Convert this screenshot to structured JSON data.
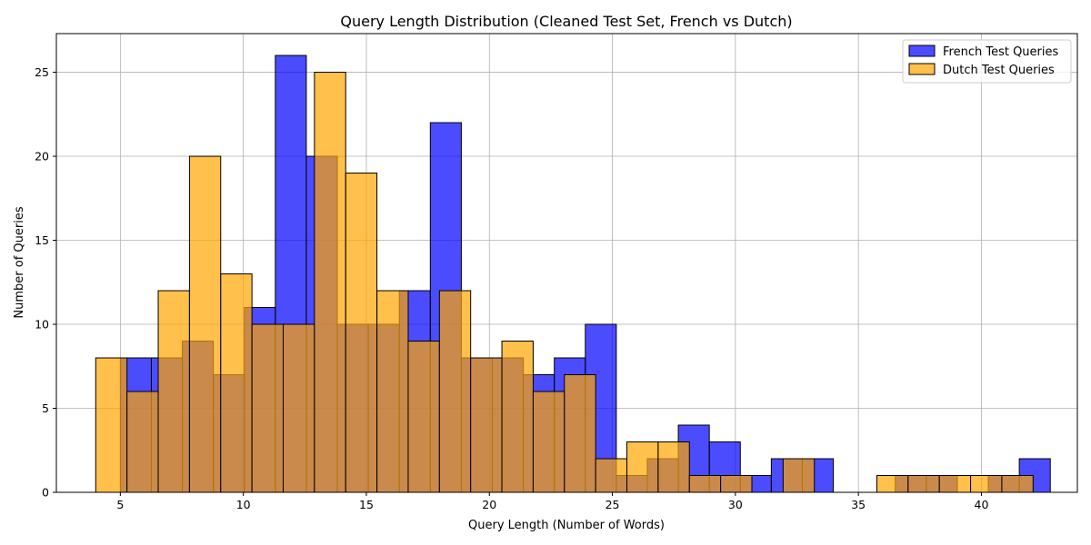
{
  "chart_data": {
    "type": "histogram",
    "title": "Query Length Distribution (Cleaned Test Set, French vs Dutch)",
    "xlabel": "Query Length (Number of Words)",
    "ylabel": "Number of Queries",
    "xlim": [
      2.4,
      43.9
    ],
    "ylim": [
      0,
      27.3
    ],
    "xticks": [
      5,
      10,
      15,
      20,
      25,
      30,
      35,
      40
    ],
    "yticks": [
      0,
      5,
      10,
      15,
      20,
      25
    ],
    "grid": true,
    "legend_position": "top-right",
    "series": [
      {
        "name": "French Test Queries",
        "color": "#0000ff",
        "bins": [
          {
            "x0": 5.0,
            "x1": 6.26,
            "value": 8
          },
          {
            "x0": 6.26,
            "x1": 7.52,
            "value": 8
          },
          {
            "x0": 7.52,
            "x1": 8.78,
            "value": 9
          },
          {
            "x0": 8.78,
            "x1": 10.04,
            "value": 7
          },
          {
            "x0": 10.04,
            "x1": 11.3,
            "value": 11
          },
          {
            "x0": 11.3,
            "x1": 12.56,
            "value": 26
          },
          {
            "x0": 12.56,
            "x1": 13.82,
            "value": 20
          },
          {
            "x0": 13.82,
            "x1": 15.08,
            "value": 10
          },
          {
            "x0": 15.08,
            "x1": 16.34,
            "value": 10
          },
          {
            "x0": 16.34,
            "x1": 17.6,
            "value": 12
          },
          {
            "x0": 17.6,
            "x1": 18.86,
            "value": 22
          },
          {
            "x0": 18.86,
            "x1": 20.12,
            "value": 8
          },
          {
            "x0": 20.12,
            "x1": 21.38,
            "value": 8
          },
          {
            "x0": 21.38,
            "x1": 22.64,
            "value": 7
          },
          {
            "x0": 22.64,
            "x1": 23.9,
            "value": 8
          },
          {
            "x0": 23.9,
            "x1": 25.16,
            "value": 10
          },
          {
            "x0": 25.16,
            "x1": 26.42,
            "value": 1
          },
          {
            "x0": 26.42,
            "x1": 27.68,
            "value": 2
          },
          {
            "x0": 27.68,
            "x1": 28.94,
            "value": 4
          },
          {
            "x0": 28.94,
            "x1": 30.2,
            "value": 3
          },
          {
            "x0": 30.2,
            "x1": 31.46,
            "value": 1
          },
          {
            "x0": 31.46,
            "x1": 32.72,
            "value": 2
          },
          {
            "x0": 32.72,
            "x1": 33.98,
            "value": 2
          },
          {
            "x0": 33.98,
            "x1": 35.24,
            "value": 0
          },
          {
            "x0": 35.24,
            "x1": 36.5,
            "value": 0
          },
          {
            "x0": 36.5,
            "x1": 37.76,
            "value": 1
          },
          {
            "x0": 37.76,
            "x1": 39.02,
            "value": 1
          },
          {
            "x0": 39.02,
            "x1": 40.28,
            "value": 0
          },
          {
            "x0": 40.28,
            "x1": 41.54,
            "value": 1
          },
          {
            "x0": 41.54,
            "x1": 42.8,
            "value": 2
          }
        ]
      },
      {
        "name": "Dutch Test Queries",
        "color": "#ffa500",
        "bins": [
          {
            "x0": 4.0,
            "x1": 5.27,
            "value": 8
          },
          {
            "x0": 5.27,
            "x1": 6.54,
            "value": 6
          },
          {
            "x0": 6.54,
            "x1": 7.81,
            "value": 12
          },
          {
            "x0": 7.81,
            "x1": 9.08,
            "value": 20
          },
          {
            "x0": 9.08,
            "x1": 10.35,
            "value": 13
          },
          {
            "x0": 10.35,
            "x1": 11.62,
            "value": 10
          },
          {
            "x0": 11.62,
            "x1": 12.89,
            "value": 10
          },
          {
            "x0": 12.89,
            "x1": 14.16,
            "value": 25
          },
          {
            "x0": 14.16,
            "x1": 15.43,
            "value": 19
          },
          {
            "x0": 15.43,
            "x1": 16.7,
            "value": 12
          },
          {
            "x0": 16.7,
            "x1": 17.97,
            "value": 9
          },
          {
            "x0": 17.97,
            "x1": 19.24,
            "value": 12
          },
          {
            "x0": 19.24,
            "x1": 20.51,
            "value": 8
          },
          {
            "x0": 20.51,
            "x1": 21.78,
            "value": 9
          },
          {
            "x0": 21.78,
            "x1": 23.05,
            "value": 6
          },
          {
            "x0": 23.05,
            "x1": 24.32,
            "value": 7
          },
          {
            "x0": 24.32,
            "x1": 25.59,
            "value": 2
          },
          {
            "x0": 25.59,
            "x1": 26.86,
            "value": 3
          },
          {
            "x0": 26.86,
            "x1": 28.13,
            "value": 3
          },
          {
            "x0": 28.13,
            "x1": 29.4,
            "value": 1
          },
          {
            "x0": 29.4,
            "x1": 30.67,
            "value": 1
          },
          {
            "x0": 30.67,
            "x1": 31.94,
            "value": 0
          },
          {
            "x0": 31.94,
            "x1": 33.21,
            "value": 2
          },
          {
            "x0": 33.21,
            "x1": 34.48,
            "value": 0
          },
          {
            "x0": 34.48,
            "x1": 35.75,
            "value": 0
          },
          {
            "x0": 35.75,
            "x1": 37.02,
            "value": 1
          },
          {
            "x0": 37.02,
            "x1": 38.29,
            "value": 1
          },
          {
            "x0": 38.29,
            "x1": 39.56,
            "value": 1
          },
          {
            "x0": 39.56,
            "x1": 40.83,
            "value": 1
          },
          {
            "x0": 40.83,
            "x1": 42.1,
            "value": 1
          }
        ]
      }
    ]
  }
}
